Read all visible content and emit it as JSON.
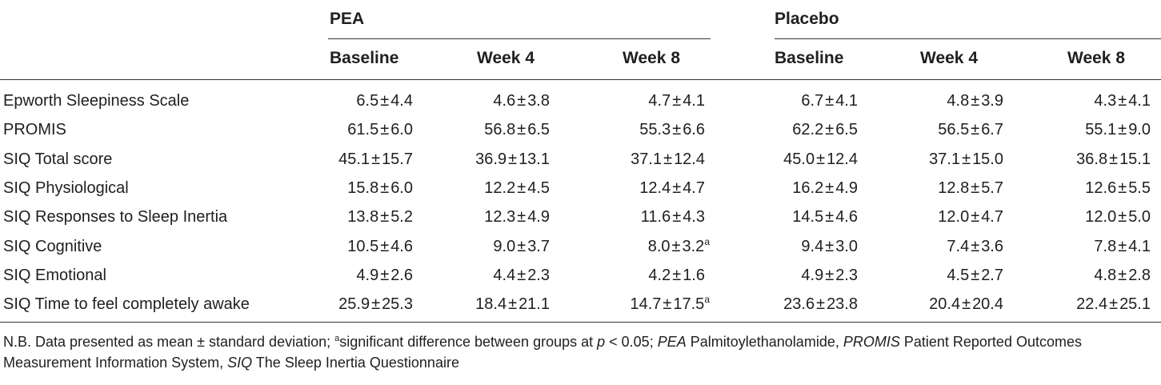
{
  "groups": {
    "pea": "PEA",
    "placebo": "Placebo"
  },
  "columns": [
    "Baseline",
    "Week 4",
    "Week 8",
    "Baseline",
    "Week 4",
    "Week 8"
  ],
  "rows": [
    {
      "label": "Epworth Sleepiness Scale",
      "cells": [
        {
          "m": "6.5",
          "sd": "4.4"
        },
        {
          "m": "4.6",
          "sd": "3.8"
        },
        {
          "m": "4.7",
          "sd": "4.1"
        },
        {
          "m": "6.7",
          "sd": "4.1"
        },
        {
          "m": "4.8",
          "sd": "3.9"
        },
        {
          "m": "4.3",
          "sd": "4.1"
        }
      ]
    },
    {
      "label": "PROMIS",
      "cells": [
        {
          "m": "61.5",
          "sd": "6.0"
        },
        {
          "m": "56.8",
          "sd": "6.5"
        },
        {
          "m": "55.3",
          "sd": "6.6"
        },
        {
          "m": "62.2",
          "sd": "6.5"
        },
        {
          "m": "56.5",
          "sd": "6.7"
        },
        {
          "m": "55.1",
          "sd": "9.0"
        }
      ]
    },
    {
      "label": "SIQ Total score",
      "cells": [
        {
          "m": "45.1",
          "sd": "15.7"
        },
        {
          "m": "36.9",
          "sd": "13.1"
        },
        {
          "m": "37.1",
          "sd": "12.4"
        },
        {
          "m": "45.0",
          "sd": "12.4"
        },
        {
          "m": "37.1",
          "sd": "15.0"
        },
        {
          "m": "36.8",
          "sd": "15.1"
        }
      ]
    },
    {
      "label": "SIQ Physiological",
      "cells": [
        {
          "m": "15.8",
          "sd": "6.0"
        },
        {
          "m": "12.2",
          "sd": "4.5"
        },
        {
          "m": "12.4",
          "sd": "4.7"
        },
        {
          "m": "16.2",
          "sd": "4.9"
        },
        {
          "m": "12.8",
          "sd": "5.7"
        },
        {
          "m": "12.6",
          "sd": "5.5"
        }
      ]
    },
    {
      "label": "SIQ Responses to Sleep Inertia",
      "cells": [
        {
          "m": "13.8",
          "sd": "5.2"
        },
        {
          "m": "12.3",
          "sd": "4.9"
        },
        {
          "m": "11.6",
          "sd": "4.3"
        },
        {
          "m": "14.5",
          "sd": "4.6"
        },
        {
          "m": "12.0",
          "sd": "4.7"
        },
        {
          "m": "12.0",
          "sd": "5.0"
        }
      ]
    },
    {
      "label": "SIQ Cognitive",
      "cells": [
        {
          "m": "10.5",
          "sd": "4.6"
        },
        {
          "m": "9.0",
          "sd": "3.7"
        },
        {
          "m": "8.0",
          "sd": "3.2",
          "sup": "a"
        },
        {
          "m": "9.4",
          "sd": "3.0"
        },
        {
          "m": "7.4",
          "sd": "3.6"
        },
        {
          "m": "7.8",
          "sd": "4.1"
        }
      ]
    },
    {
      "label": "SIQ Emotional",
      "cells": [
        {
          "m": "4.9",
          "sd": "2.6"
        },
        {
          "m": "4.4",
          "sd": "2.3"
        },
        {
          "m": "4.2",
          "sd": "1.6"
        },
        {
          "m": "4.9",
          "sd": "2.3"
        },
        {
          "m": "4.5",
          "sd": "2.7"
        },
        {
          "m": "4.8",
          "sd": "2.8"
        }
      ]
    },
    {
      "label": "SIQ Time to feel completely awake",
      "cells": [
        {
          "m": "25.9",
          "sd": "25.3"
        },
        {
          "m": "18.4",
          "sd": "21.1"
        },
        {
          "m": "14.7",
          "sd": "17.5",
          "sup": "a"
        },
        {
          "m": "23.6",
          "sd": "23.8"
        },
        {
          "m": "20.4",
          "sd": "20.4"
        },
        {
          "m": "22.4",
          "sd": "25.1"
        }
      ]
    }
  ],
  "pm_symbol": "±",
  "footnote": {
    "part1": "N.B. Data presented as mean ± standard deviation; ",
    "sup_a": "a",
    "part2": "significant difference between groups at ",
    "p": "p",
    "part3": " < 0.05; ",
    "pea_abbr": "PEA",
    "pea_full": "  Palmitoylethanolamide, ",
    "promis_abbr": "PROMIS",
    "promis_full": " Patient Reported Outcomes Measurement Information System, ",
    "siq_abbr": "SIQ",
    "siq_full": " The Sleep Inertia Questionnaire"
  }
}
